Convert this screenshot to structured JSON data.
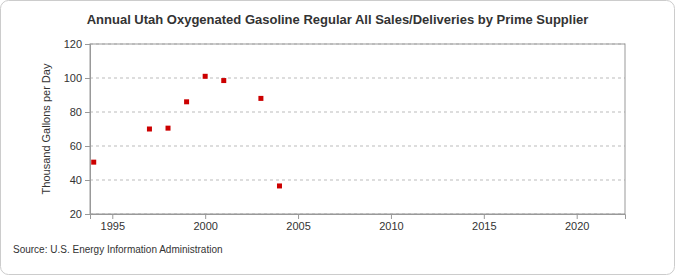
{
  "chart_data": {
    "type": "scatter",
    "title": "Annual Utah Oxygenated Gasoline Regular All Sales/Deliveries by Prime Supplier",
    "y_label": "Thousand Gallons per Day",
    "source": "Source: U.S. Energy Information Administration",
    "x": [
      1994,
      1997,
      1998,
      1999,
      2000,
      2001,
      2003,
      2004
    ],
    "values": [
      50.5,
      70,
      70.5,
      86,
      101,
      98.5,
      88,
      36.5
    ],
    "color": "#cc0000",
    "marker": "square",
    "xlim": [
      1993.8,
      2022.6
    ],
    "xticks": [
      1995,
      2000,
      2005,
      2010,
      2015,
      2020
    ],
    "ylim": [
      20,
      120
    ],
    "yticks": [
      20,
      40,
      60,
      80,
      100,
      120
    ],
    "grid": true
  }
}
